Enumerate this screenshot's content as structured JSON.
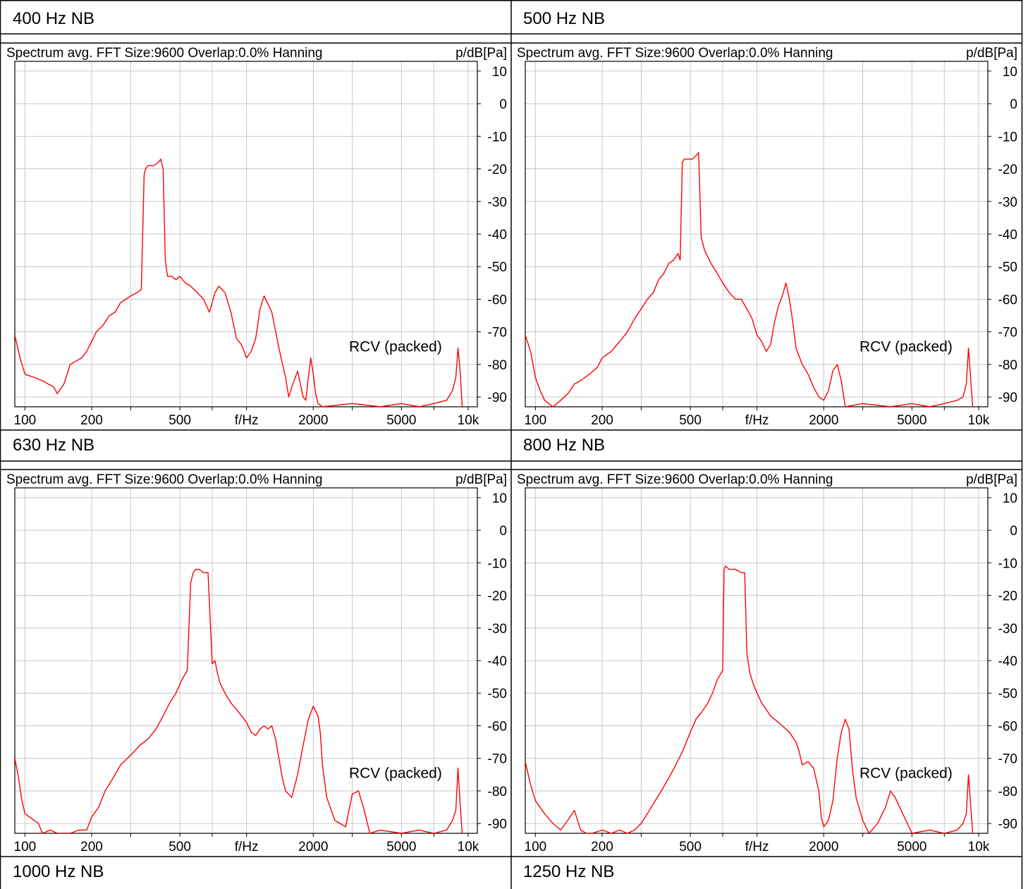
{
  "panels": [
    {
      "title": "400 Hz NB"
    },
    {
      "title": "500 Hz NB"
    },
    {
      "title": "630 Hz NB"
    },
    {
      "title": "800 Hz NB"
    }
  ],
  "bottom_titles": [
    "1000 Hz NB",
    "1250 Hz NB"
  ],
  "colors": {
    "trace": "#ff0000",
    "grid": "#c8c8c8",
    "border": "#000000"
  },
  "chart_data": [
    {
      "type": "line",
      "header": "Spectrum avg.  FFT Size:9600  Overlap:0.0%  Hanning",
      "ylabel": "p/dB[Pa]",
      "xlabel": "f/Hz",
      "x_scale": "log",
      "xlim": [
        90,
        11000
      ],
      "ylim": [
        -93,
        13
      ],
      "x_ticks": [
        100,
        200,
        500,
        2000,
        5000,
        10000
      ],
      "x_tick_labels": [
        "100",
        "200",
        "500",
        "2000",
        "5000",
        "10k"
      ],
      "x_gridlines": [
        100,
        200,
        300,
        500,
        700,
        1000,
        2000,
        3000,
        5000,
        7000,
        10000
      ],
      "y_ticks": [
        10,
        0,
        -10,
        -20,
        -30,
        -40,
        -50,
        -60,
        -70,
        -80,
        -90
      ],
      "annotation": "RCV (packed)",
      "series": [
        {
          "color": "#ff0000",
          "x": [
            90,
            95,
            100,
            110,
            120,
            135,
            140,
            150,
            160,
            170,
            180,
            190,
            200,
            210,
            225,
            240,
            255,
            270,
            285,
            300,
            320,
            335,
            345,
            350,
            360,
            380,
            400,
            410,
            420,
            430,
            440,
            460,
            480,
            500,
            530,
            560,
            600,
            640,
            680,
            700,
            720,
            750,
            800,
            850,
            900,
            950,
            1000,
            1050,
            1100,
            1150,
            1200,
            1300,
            1400,
            1500,
            1550,
            1600,
            1700,
            1800,
            1850,
            1900,
            1950,
            2000,
            2050,
            2100,
            2200,
            3000,
            4000,
            5000,
            6000,
            7000,
            8000,
            8500,
            8800,
            9000,
            9200,
            9400
          ],
          "y": [
            -71,
            -78,
            -83,
            -84,
            -85,
            -87,
            -89,
            -86,
            -80,
            -79,
            -78,
            -76,
            -73,
            -70,
            -68,
            -65,
            -64,
            -61,
            -60,
            -59,
            -58,
            -57,
            -22,
            -20,
            -19,
            -19,
            -18,
            -17,
            -20,
            -48,
            -53,
            -53,
            -54,
            -53,
            -55,
            -56,
            -58,
            -60,
            -64,
            -61,
            -58,
            -56,
            -58,
            -64,
            -72,
            -74,
            -78,
            -76,
            -72,
            -63,
            -59,
            -64,
            -75,
            -84,
            -90,
            -87,
            -82,
            -90,
            -91,
            -84,
            -78,
            -83,
            -89,
            -92,
            -93,
            -92,
            -93,
            -92,
            -93,
            -92,
            -91,
            -88,
            -84,
            -75,
            -82,
            -93
          ]
        }
      ]
    },
    {
      "type": "line",
      "header": "Spectrum avg.  FFT Size:9600  Overlap:0.0%  Hanning",
      "ylabel": "p/dB[Pa]",
      "xlabel": "f/Hz",
      "x_scale": "log",
      "xlim": [
        90,
        11000
      ],
      "ylim": [
        -93,
        13
      ],
      "x_ticks": [
        100,
        200,
        500,
        2000,
        5000,
        10000
      ],
      "x_tick_labels": [
        "100",
        "200",
        "500",
        "2000",
        "5000",
        "10k"
      ],
      "x_gridlines": [
        100,
        200,
        300,
        500,
        700,
        1000,
        2000,
        3000,
        5000,
        7000,
        10000
      ],
      "y_ticks": [
        10,
        0,
        -10,
        -20,
        -30,
        -40,
        -50,
        -60,
        -70,
        -80,
        -90
      ],
      "annotation": "RCV (packed)",
      "series": [
        {
          "color": "#ff0000",
          "x": [
            90,
            95,
            100,
            105,
            110,
            120,
            130,
            140,
            150,
            160,
            175,
            190,
            200,
            220,
            240,
            260,
            280,
            300,
            320,
            340,
            360,
            380,
            400,
            420,
            440,
            450,
            460,
            470,
            490,
            510,
            530,
            545,
            560,
            580,
            620,
            660,
            700,
            750,
            800,
            850,
            900,
            950,
            1000,
            1050,
            1100,
            1150,
            1200,
            1250,
            1300,
            1350,
            1400,
            1450,
            1500,
            1600,
            1700,
            1800,
            1900,
            2000,
            2100,
            2200,
            2300,
            2400,
            2500,
            3000,
            4000,
            5000,
            6000,
            7000,
            8000,
            8500,
            8800,
            9000,
            9200,
            9400
          ],
          "y": [
            -71,
            -76,
            -84,
            -88,
            -91,
            -93,
            -91,
            -89,
            -86,
            -85,
            -83,
            -81,
            -78,
            -76,
            -73,
            -70,
            -66,
            -63,
            -60,
            -58,
            -54,
            -52,
            -49,
            -48,
            -46,
            -48,
            -18,
            -17,
            -17,
            -17,
            -16,
            -15,
            -41,
            -45,
            -49,
            -52,
            -55,
            -58,
            -60,
            -60,
            -63,
            -66,
            -71,
            -73,
            -76,
            -74,
            -67,
            -62,
            -59,
            -55,
            -60,
            -67,
            -75,
            -80,
            -83,
            -87,
            -90,
            -91,
            -88,
            -82,
            -80,
            -85,
            -93,
            -92,
            -93,
            -92,
            -93,
            -92,
            -91,
            -90,
            -86,
            -75,
            -84,
            -93
          ]
        }
      ]
    },
    {
      "type": "line",
      "header": "Spectrum avg.  FFT Size:9600  Overlap:0.0%  Hanning",
      "ylabel": "p/dB[Pa]",
      "xlabel": "f/Hz",
      "x_scale": "log",
      "xlim": [
        90,
        11000
      ],
      "ylim": [
        -93,
        13
      ],
      "x_ticks": [
        100,
        200,
        500,
        2000,
        5000,
        10000
      ],
      "x_tick_labels": [
        "100",
        "200",
        "500",
        "2000",
        "5000",
        "10k"
      ],
      "x_gridlines": [
        100,
        200,
        300,
        500,
        700,
        1000,
        2000,
        3000,
        5000,
        7000,
        10000
      ],
      "y_ticks": [
        10,
        0,
        -10,
        -20,
        -30,
        -40,
        -50,
        -60,
        -70,
        -80,
        -90
      ],
      "annotation": "RCV (packed)",
      "series": [
        {
          "color": "#ff0000",
          "x": [
            90,
            93,
            97,
            100,
            110,
            115,
            120,
            130,
            140,
            150,
            160,
            175,
            190,
            200,
            215,
            230,
            250,
            270,
            290,
            310,
            330,
            360,
            390,
            420,
            450,
            480,
            510,
            540,
            560,
            575,
            590,
            610,
            640,
            670,
            700,
            720,
            740,
            760,
            800,
            850,
            900,
            950,
            1000,
            1050,
            1100,
            1150,
            1200,
            1250,
            1300,
            1350,
            1400,
            1450,
            1500,
            1600,
            1700,
            1800,
            1900,
            2000,
            2100,
            2150,
            2200,
            2300,
            2500,
            2800,
            3000,
            3200,
            3400,
            3600,
            4000,
            5000,
            6000,
            7000,
            8000,
            8500,
            8800,
            9000,
            9200,
            9400
          ],
          "y": [
            -70,
            -75,
            -83,
            -87,
            -89,
            -90,
            -93,
            -92,
            -93,
            -93,
            -93,
            -92,
            -92,
            -88,
            -85,
            -80,
            -76,
            -72,
            -70,
            -68,
            -66,
            -64,
            -61,
            -57,
            -53,
            -50,
            -46,
            -43,
            -16,
            -13,
            -12,
            -12,
            -13,
            -13,
            -41,
            -40,
            -44,
            -47,
            -50,
            -53,
            -55,
            -57,
            -59,
            -62,
            -63,
            -61,
            -60,
            -61,
            -60,
            -64,
            -70,
            -76,
            -80,
            -82,
            -75,
            -66,
            -58,
            -54,
            -57,
            -62,
            -72,
            -82,
            -89,
            -91,
            -81,
            -80,
            -86,
            -93,
            -92,
            -93,
            -92,
            -93,
            -92,
            -89,
            -86,
            -73,
            -84,
            -93
          ]
        }
      ]
    },
    {
      "type": "line",
      "header": "Spectrum avg.  FFT Size:9600  Overlap:0.0%  Hanning",
      "ylabel": "p/dB[Pa]",
      "xlabel": "f/Hz",
      "x_scale": "log",
      "xlim": [
        90,
        11000
      ],
      "ylim": [
        -93,
        13
      ],
      "x_ticks": [
        100,
        200,
        500,
        2000,
        5000,
        10000
      ],
      "x_tick_labels": [
        "100",
        "200",
        "500",
        "2000",
        "5000",
        "10k"
      ],
      "x_gridlines": [
        100,
        200,
        300,
        500,
        700,
        1000,
        2000,
        3000,
        5000,
        7000,
        10000
      ],
      "y_ticks": [
        10,
        0,
        -10,
        -20,
        -30,
        -40,
        -50,
        -60,
        -70,
        -80,
        -90
      ],
      "annotation": "RCV (packed)",
      "series": [
        {
          "color": "#ff0000",
          "x": [
            90,
            95,
            100,
            110,
            120,
            130,
            140,
            150,
            160,
            170,
            180,
            200,
            220,
            240,
            260,
            280,
            300,
            320,
            340,
            370,
            400,
            430,
            460,
            500,
            530,
            560,
            600,
            630,
            660,
            700,
            710,
            720,
            750,
            800,
            850,
            880,
            900,
            910,
            930,
            960,
            1000,
            1050,
            1100,
            1150,
            1200,
            1300,
            1400,
            1500,
            1550,
            1600,
            1700,
            1800,
            1900,
            1950,
            2000,
            2100,
            2200,
            2300,
            2400,
            2500,
            2600,
            2700,
            2800,
            3000,
            3200,
            3500,
            3800,
            4000,
            4200,
            5000,
            6000,
            7000,
            8000,
            8500,
            8800,
            9000,
            9200,
            9400
          ],
          "y": [
            -71,
            -78,
            -83,
            -87,
            -90,
            -92,
            -89,
            -86,
            -92,
            -93,
            -93,
            -92,
            -93,
            -92,
            -93,
            -92,
            -90,
            -87,
            -84,
            -80,
            -76,
            -72,
            -68,
            -62,
            -58,
            -56,
            -53,
            -50,
            -46,
            -43,
            -12,
            -11,
            -12,
            -12,
            -13,
            -13,
            -38,
            -40,
            -44,
            -47,
            -50,
            -53,
            -55,
            -57,
            -58,
            -60,
            -62,
            -65,
            -68,
            -72,
            -71,
            -73,
            -80,
            -88,
            -91,
            -89,
            -83,
            -70,
            -62,
            -58,
            -61,
            -74,
            -82,
            -89,
            -93,
            -90,
            -85,
            -80,
            -82,
            -93,
            -92,
            -93,
            -92,
            -90,
            -87,
            -75,
            -84,
            -93
          ]
        }
      ]
    }
  ]
}
